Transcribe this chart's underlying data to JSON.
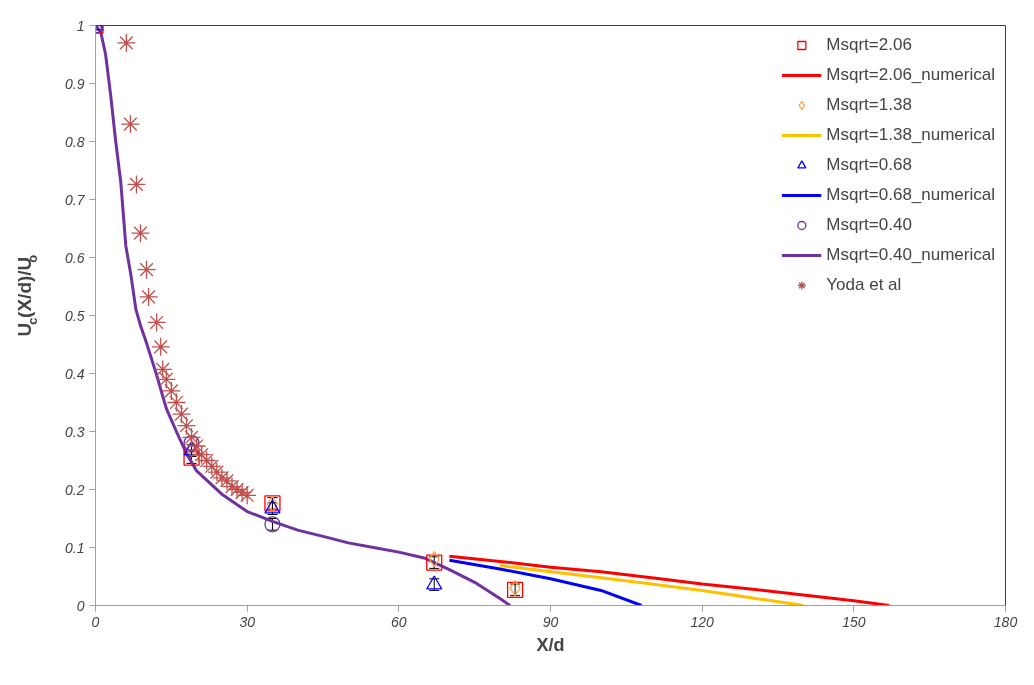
{
  "chart_data": {
    "type": "line",
    "xlabel": "X/d",
    "ylabel": "U$_{c}$(X/d)/U$_{o}$",
    "xlim": [
      0,
      180
    ],
    "ylim": [
      0,
      1
    ],
    "xticks": [
      0,
      30,
      60,
      90,
      120,
      150,
      180
    ],
    "yticks": [
      0,
      0.1,
      0.2,
      0.3,
      0.4,
      0.5,
      0.6,
      0.7,
      0.8,
      0.9,
      1
    ],
    "grid": false,
    "legend": "top right",
    "series": [
      {
        "type": "scatter",
        "name": "Msqrt=2.06",
        "color": "#ff0000",
        "marker": "square",
        "x": [
          0,
          19,
          35,
          67,
          83
        ],
        "values": [
          1,
          0.255,
          0.176,
          0.074,
          0.027
        ],
        "errors": [
          null,
          0.01,
          0.01,
          0.01,
          0.01
        ]
      },
      {
        "type": "line",
        "name": "Msqrt=2.06_numerical",
        "color": "#ff0000",
        "x": [
          70,
          80,
          90,
          100,
          110,
          120,
          130,
          140,
          150,
          157
        ],
        "values": [
          0.085,
          0.076,
          0.066,
          0.058,
          0.048,
          0.037,
          0.028,
          0.018,
          0.008,
          0
        ]
      },
      {
        "type": "scatter",
        "name": "Msqrt=1.38",
        "color": "#ffa040",
        "marker": "diamond",
        "x": [
          19,
          35,
          67,
          83
        ],
        "values": [
          0.27,
          0.175,
          0.08,
          0.03
        ]
      },
      {
        "type": "line",
        "name": "Msqrt=1.38_numerical",
        "color": "#ffc000",
        "x": [
          80,
          90,
          100,
          110,
          120,
          130,
          140
        ],
        "values": [
          0.069,
          0.058,
          0.048,
          0.037,
          0.026,
          0.013,
          0
        ]
      },
      {
        "type": "scatter",
        "name": "Msqrt=0.68",
        "color": "#0000ff",
        "marker": "triangle",
        "x": [
          0,
          19,
          35,
          67
        ],
        "values": [
          1,
          0.267,
          0.167,
          0.036
        ],
        "errors": [
          null,
          0.01,
          0.01,
          0.01
        ]
      },
      {
        "type": "line",
        "name": "Msqrt=0.68_numerical",
        "color": "#0000ff",
        "x": [
          70,
          80,
          90,
          100,
          108
        ],
        "values": [
          0.078,
          0.063,
          0.046,
          0.026,
          0
        ]
      },
      {
        "type": "scatter",
        "name": "Msqrt=0.40",
        "color": "#7030a0",
        "marker": "circle",
        "x": [
          0,
          19,
          35
        ],
        "values": [
          1,
          0.28,
          0.14
        ],
        "errors": [
          null,
          null,
          0.01
        ]
      },
      {
        "type": "line",
        "name": "Msqrt=0.40_numerical",
        "color": "#7030a0",
        "x": [
          0,
          1,
          2,
          3,
          4,
          5,
          6,
          7,
          8,
          9,
          10,
          12,
          14,
          16,
          18,
          20,
          25,
          30,
          35,
          40,
          46,
          50,
          55,
          60,
          65,
          70,
          75,
          80,
          82
        ],
        "values": [
          1,
          0.99,
          0.95,
          0.88,
          0.8,
          0.73,
          0.62,
          0.57,
          0.51,
          0.48,
          0.455,
          0.4,
          0.34,
          0.3,
          0.262,
          0.232,
          0.192,
          0.162,
          0.145,
          0.13,
          0.117,
          0.108,
          0.1,
          0.092,
          0.082,
          0.062,
          0.04,
          0.012,
          0
        ]
      },
      {
        "type": "scatter",
        "name": "Yoda et al",
        "color": "#c0504d",
        "marker": "cross",
        "x": [
          6.1,
          6.9,
          8.1,
          8.9,
          10.1,
          10.5,
          12.1,
          12.9,
          13.3,
          14,
          15,
          16,
          17,
          18,
          19,
          20,
          21,
          22,
          23,
          24,
          25,
          26,
          27,
          28,
          29,
          30
        ],
        "values": [
          0.97,
          0.83,
          0.726,
          0.642,
          0.579,
          0.532,
          0.488,
          0.446,
          0.407,
          0.39,
          0.37,
          0.35,
          0.33,
          0.31,
          0.29,
          0.275,
          0.26,
          0.25,
          0.24,
          0.23,
          0.22,
          0.215,
          0.205,
          0.2,
          0.195,
          0.19
        ]
      }
    ]
  }
}
